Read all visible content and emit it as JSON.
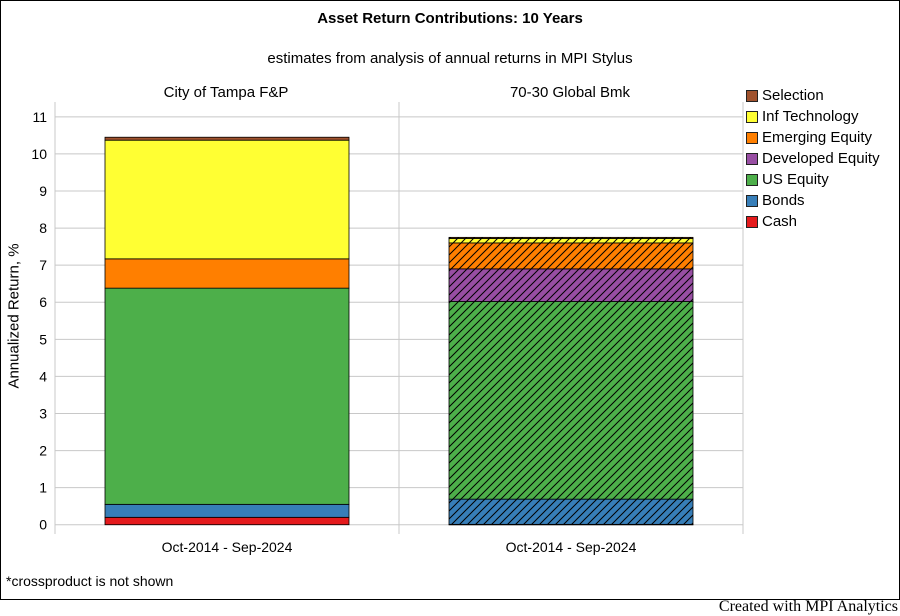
{
  "title": "Asset Return Contributions: 10 Years",
  "subtitle": "estimates from analysis of annual returns in MPI Stylus",
  "footnote": "*crossproduct is not shown",
  "credit": "Created with MPI Analytics",
  "chart_data": {
    "type": "bar",
    "stacked": true,
    "ylabel": "Annualized Return, %",
    "ylim": [
      -0.25,
      11.4
    ],
    "yticks": [
      0,
      1,
      2,
      3,
      4,
      5,
      6,
      7,
      8,
      9,
      10,
      11
    ],
    "grid": true,
    "legend_position": "right",
    "legend": [
      {
        "name": "Selection",
        "color": "#a0522d"
      },
      {
        "name": "Inf Technology",
        "color": "#ffff33"
      },
      {
        "name": "Emerging Equity",
        "color": "#ff7f00"
      },
      {
        "name": "Developed Equity",
        "color": "#984ea3"
      },
      {
        "name": "US Equity",
        "color": "#4daf4a"
      },
      {
        "name": "Bonds",
        "color": "#377eb8"
      },
      {
        "name": "Cash",
        "color": "#e41a1c"
      }
    ],
    "panels": [
      {
        "title": "City of Tampa F&P",
        "category": "Oct-2014 - Sep-2024",
        "hatched": false,
        "segments": [
          {
            "name": "Cash",
            "value": 0.2
          },
          {
            "name": "Bonds",
            "value": 0.35
          },
          {
            "name": "US Equity",
            "value": 5.83
          },
          {
            "name": "Emerging Equity",
            "value": 0.79
          },
          {
            "name": "Inf Technology",
            "value": 3.2
          },
          {
            "name": "Selection",
            "value": 0.08
          }
        ]
      },
      {
        "title": "70-30 Global Bmk",
        "category": "Oct-2014 - Sep-2024",
        "hatched": true,
        "segments": [
          {
            "name": "Cash",
            "value": 0.01
          },
          {
            "name": "Bonds",
            "value": 0.68
          },
          {
            "name": "US Equity",
            "value": 5.33
          },
          {
            "name": "Developed Equity",
            "value": 0.88
          },
          {
            "name": "Emerging Equity",
            "value": 0.7
          },
          {
            "name": "Inf Technology",
            "value": 0.12
          },
          {
            "name": "Selection",
            "value": 0.03
          }
        ]
      }
    ]
  }
}
